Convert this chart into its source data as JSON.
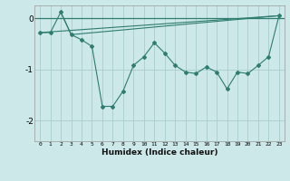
{
  "xlabel": "Humidex (Indice chaleur)",
  "background_color": "#cce8e8",
  "line_color": "#2e7d6e",
  "grid_color": "#aacccc",
  "xlim": [
    -0.5,
    23.5
  ],
  "ylim": [
    -2.4,
    0.25
  ],
  "yticks": [
    0,
    -1,
    -2
  ],
  "xticks": [
    0,
    1,
    2,
    3,
    4,
    5,
    6,
    7,
    8,
    9,
    10,
    11,
    12,
    13,
    14,
    15,
    16,
    17,
    18,
    19,
    20,
    21,
    22,
    23
  ],
  "line1_x": [
    0,
    1,
    2,
    3,
    4,
    5,
    6,
    7,
    8,
    9,
    10,
    11,
    12,
    13,
    14,
    15,
    16,
    17,
    18,
    19,
    20,
    21,
    22,
    23
  ],
  "line1_y": [
    -0.28,
    -0.28,
    0.12,
    -0.32,
    -0.42,
    -0.55,
    -1.72,
    -1.72,
    -1.42,
    -0.92,
    -0.75,
    -0.48,
    -0.68,
    -0.92,
    -1.05,
    -1.08,
    -0.95,
    -1.05,
    -1.38,
    -1.05,
    -1.08,
    -0.92,
    -0.75,
    0.05
  ],
  "line2_x": [
    2,
    3,
    23
  ],
  "line2_y": [
    0.12,
    -0.32,
    0.05
  ],
  "line3_x": [
    0,
    23
  ],
  "line3_y": [
    -0.28,
    0.05
  ],
  "hline_y": 0.0,
  "marker_style": "D",
  "marker_size": 2.0,
  "line_width": 0.8
}
